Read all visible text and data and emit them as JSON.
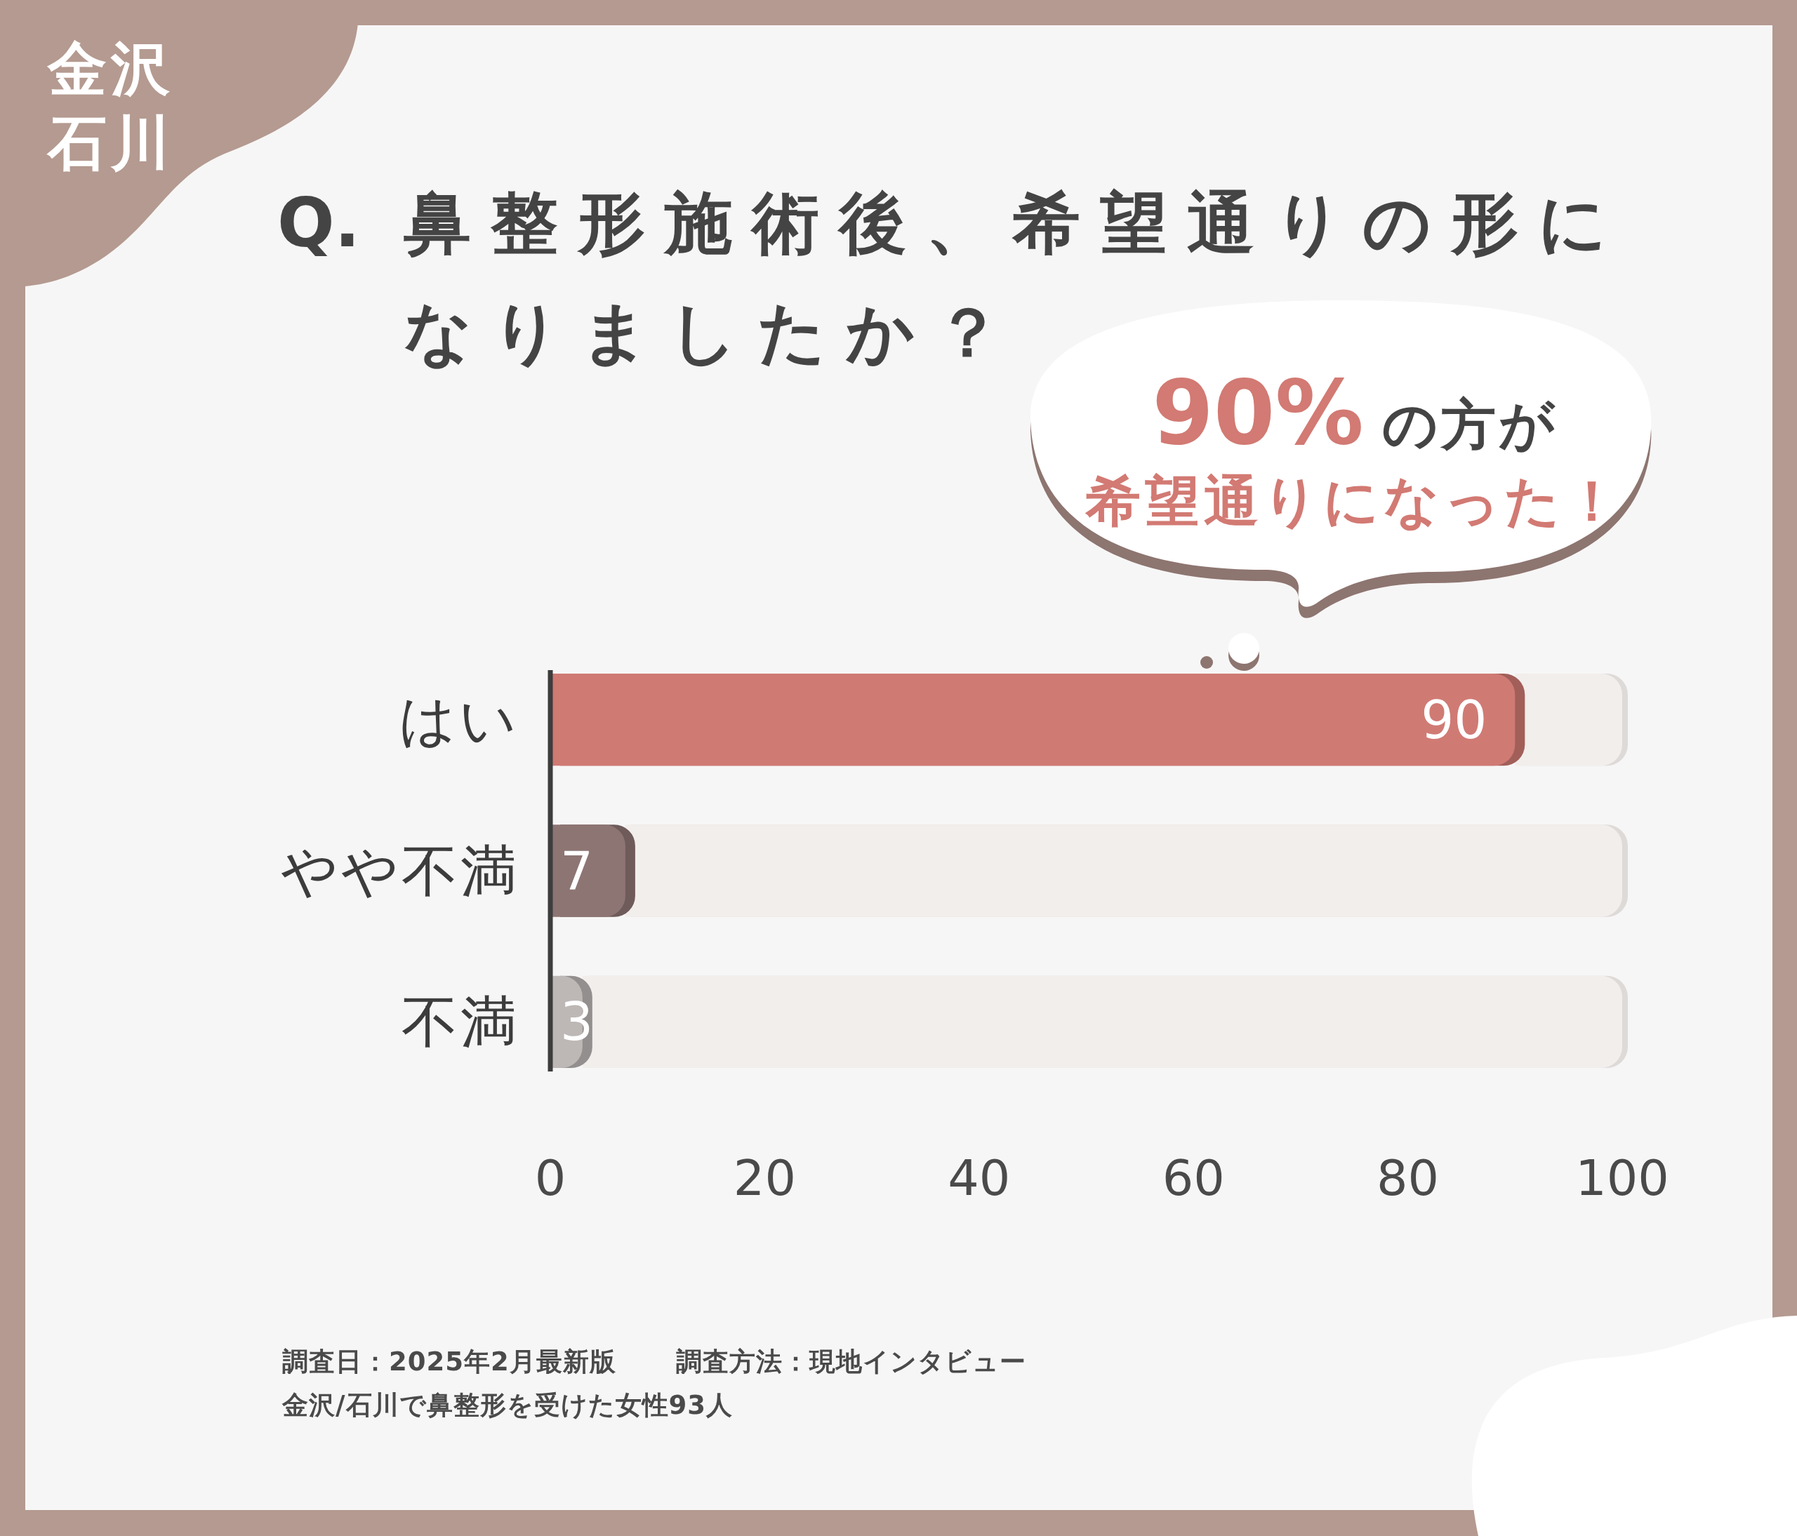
{
  "chart_data": {
    "type": "bar",
    "orientation": "horizontal",
    "stacked": true,
    "title": "Q. 鼻整形施術後、希望通りの形になりましたか？",
    "categories": [
      "はい",
      "やや不満",
      "不満"
    ],
    "series": [
      {
        "values": [
          90,
          7,
          3
        ],
        "colors": [
          "#d07a74",
          "#8d7573",
          "#bdb8b6"
        ],
        "value_labels": [
          "90",
          "7",
          "3"
        ]
      },
      {
        "values": [
          10,
          93,
          97
        ],
        "color": "#f2eeec"
      }
    ],
    "xlim": [
      0,
      100
    ],
    "xticks": [
      0,
      20,
      40,
      60,
      80,
      100
    ],
    "annotations": [
      "金沢",
      "石川",
      "90% の方が",
      "希望通りになった！",
      "調査日：2025年2月最新版",
      "調査方法：現地インタビュー",
      "金沢/石川で鼻整形を受けた女性93人"
    ]
  }
}
